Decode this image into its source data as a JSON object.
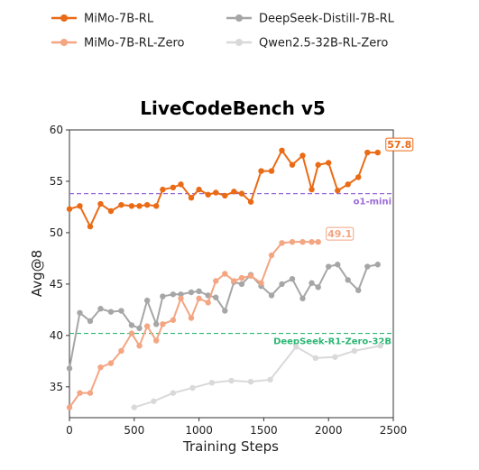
{
  "chart_data": {
    "type": "line",
    "title": "LiveCodeBench v5",
    "xlabel": "Training Steps",
    "ylabel": "Avg@8",
    "xlim": [
      0,
      2500
    ],
    "ylim": [
      32,
      60
    ],
    "xticks": [
      0,
      500,
      1000,
      1500,
      2000,
      2500
    ],
    "yticks": [
      35,
      40,
      45,
      50,
      55,
      60
    ],
    "grid": false,
    "legend_position": "top",
    "series": [
      {
        "name": "MiMo-7B-RL",
        "color": "#ea6b16",
        "x": [
          0,
          80,
          160,
          240,
          320,
          400,
          480,
          540,
          600,
          670,
          720,
          800,
          860,
          940,
          1000,
          1070,
          1130,
          1200,
          1270,
          1330,
          1400,
          1480,
          1560,
          1640,
          1720,
          1800,
          1870,
          1920,
          2000,
          2070,
          2150,
          2230,
          2300,
          2380
        ],
        "y": [
          52.3,
          52.6,
          50.6,
          52.8,
          52.1,
          52.7,
          52.6,
          52.6,
          52.7,
          52.6,
          54.2,
          54.4,
          54.7,
          53.4,
          54.2,
          53.7,
          53.9,
          53.6,
          54.0,
          53.8,
          53.0,
          56.0,
          56.0,
          58.0,
          56.6,
          57.5,
          54.2,
          56.6,
          56.8,
          54.1,
          54.7,
          55.4,
          57.8,
          57.8
        ],
        "end_label": "57.8"
      },
      {
        "name": "MiMo-7B-RL-Zero",
        "color": "#f4a582",
        "x": [
          0,
          80,
          160,
          240,
          320,
          400,
          480,
          540,
          600,
          670,
          720,
          800,
          860,
          940,
          1000,
          1070,
          1130,
          1200,
          1270,
          1330,
          1400,
          1480,
          1560,
          1640,
          1720,
          1800,
          1870,
          1920
        ],
        "y": [
          33.0,
          34.4,
          34.4,
          36.9,
          37.3,
          38.5,
          40.2,
          39.0,
          40.9,
          39.5,
          41.1,
          41.5,
          43.6,
          41.7,
          43.6,
          43.2,
          45.3,
          46.0,
          45.3,
          45.6,
          45.8,
          45.1,
          47.8,
          49.0,
          49.1,
          49.1,
          49.1,
          49.1
        ],
        "end_label": "49.1"
      },
      {
        "name": "DeepSeek-Distill-7B-RL",
        "color": "#a6a6a6",
        "x": [
          0,
          80,
          160,
          240,
          320,
          400,
          480,
          540,
          600,
          670,
          720,
          800,
          860,
          940,
          1000,
          1070,
          1130,
          1200,
          1270,
          1330,
          1400,
          1480,
          1560,
          1640,
          1720,
          1800,
          1870,
          1920,
          2000,
          2070,
          2150,
          2230,
          2300,
          2380
        ],
        "y": [
          36.8,
          42.2,
          41.4,
          42.6,
          42.3,
          42.4,
          41.0,
          40.7,
          43.4,
          41.1,
          43.8,
          44.0,
          44.0,
          44.2,
          44.3,
          43.9,
          43.7,
          42.4,
          45.2,
          45.0,
          45.9,
          44.8,
          43.9,
          45.0,
          45.5,
          43.6,
          45.1,
          44.7,
          46.7,
          46.9,
          45.4,
          44.4,
          46.7,
          46.9
        ]
      },
      {
        "name": "Qwen2.5-32B-RL-Zero",
        "color": "#d9d9d9",
        "x": [
          500,
          650,
          800,
          950,
          1100,
          1250,
          1400,
          1550,
          1750,
          1900,
          2050,
          2200,
          2400
        ],
        "y": [
          33.0,
          33.6,
          34.4,
          34.9,
          35.4,
          35.6,
          35.5,
          35.7,
          38.9,
          37.8,
          37.9,
          38.5,
          39.0
        ]
      }
    ],
    "reference_lines": [
      {
        "label": "o1-mini",
        "y": 53.8,
        "color": "#9b6bd8"
      },
      {
        "label": "DeepSeek-R1-Zero-32B",
        "y": 40.2,
        "color": "#2bb673"
      }
    ]
  }
}
